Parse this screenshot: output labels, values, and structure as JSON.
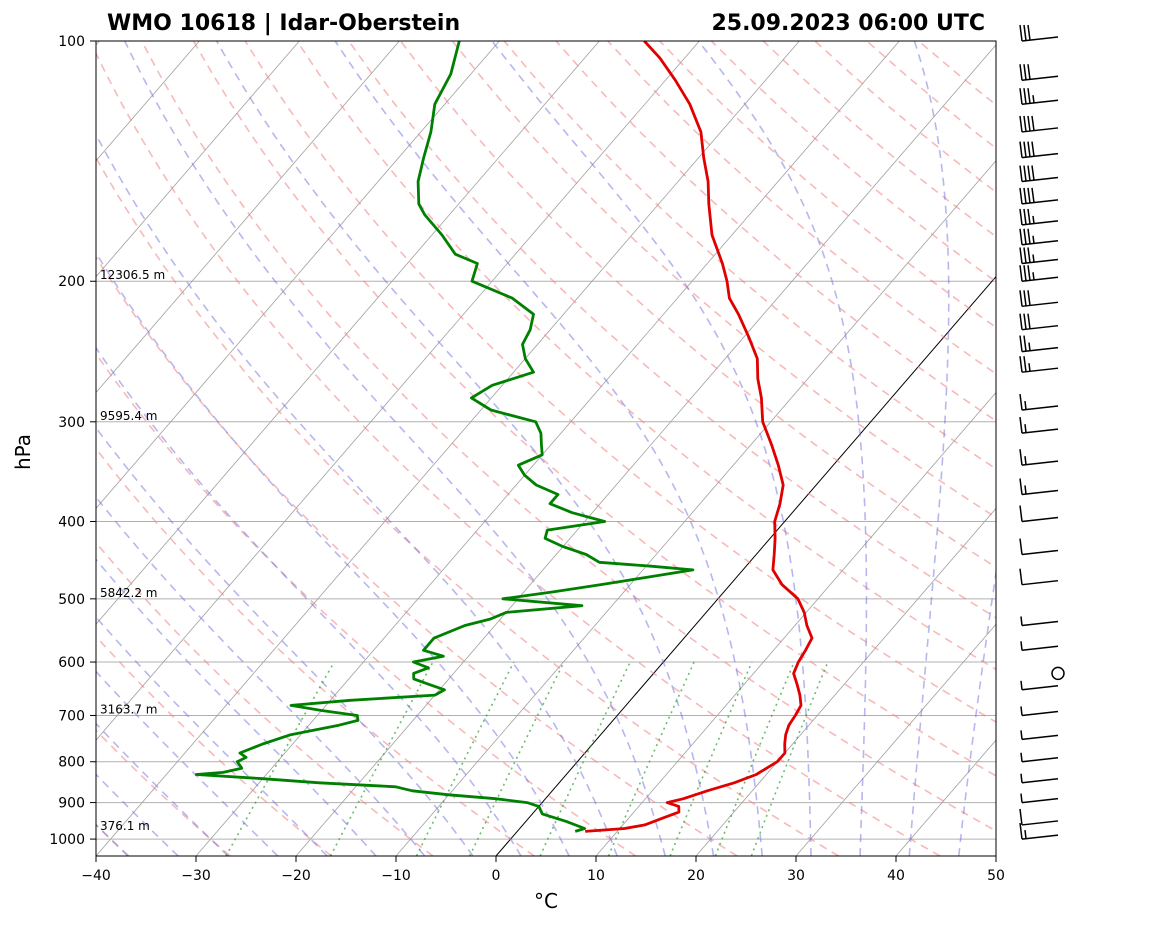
{
  "chart_data": {
    "type": "line",
    "title_left": "WMO 10618 | Idar-Oberstein",
    "title_right": "25.09.2023 06:00 UTC",
    "xlabel": "°C",
    "ylabel": "hPa",
    "xlim": [
      -40,
      50
    ],
    "ylim": [
      1050,
      100
    ],
    "y_scale": "log",
    "x_ticks": [
      -40,
      -30,
      -20,
      -10,
      0,
      10,
      20,
      30,
      40,
      50
    ],
    "x_tick_labels": [
      "−40",
      "−30",
      "−20",
      "−10",
      "0",
      "10",
      "20",
      "30",
      "40",
      "50"
    ],
    "y_ticks": [
      100,
      200,
      300,
      400,
      500,
      600,
      700,
      800,
      900,
      1000
    ],
    "y_tick_labels": [
      "100",
      "200",
      "300",
      "400",
      "500",
      "600",
      "700",
      "800",
      "900",
      "1000"
    ],
    "grid": true,
    "skew": "skew-T",
    "height_labels": [
      {
        "p": 200,
        "text": "12306.5 m"
      },
      {
        "p": 300,
        "text": "9595.4 m"
      },
      {
        "p": 500,
        "text": "5842.2 m"
      },
      {
        "p": 700,
        "text": "3163.7 m"
      },
      {
        "p": 980,
        "text": "376.1 m"
      }
    ],
    "series": [
      {
        "role": "temperature",
        "color": "#e00000",
        "points": [
          [
            978,
            6.8
          ],
          [
            970,
            10.5
          ],
          [
            960,
            12.2
          ],
          [
            940,
            13.5
          ],
          [
            925,
            14.5
          ],
          [
            910,
            14.0
          ],
          [
            900,
            12.5
          ],
          [
            890,
            13.8
          ],
          [
            870,
            15.5
          ],
          [
            850,
            17.5
          ],
          [
            830,
            19.0
          ],
          [
            800,
            20.0
          ],
          [
            780,
            20.0
          ],
          [
            760,
            19.2
          ],
          [
            740,
            18.5
          ],
          [
            720,
            18.0
          ],
          [
            700,
            17.8
          ],
          [
            680,
            17.5
          ],
          [
            660,
            16.5
          ],
          [
            640,
            15.3
          ],
          [
            620,
            14.0
          ],
          [
            600,
            13.5
          ],
          [
            580,
            13.2
          ],
          [
            560,
            12.8
          ],
          [
            540,
            11.2
          ],
          [
            520,
            9.8
          ],
          [
            500,
            8.0
          ],
          [
            480,
            5.2
          ],
          [
            460,
            3.0
          ],
          [
            440,
            1.8
          ],
          [
            420,
            0.5
          ],
          [
            400,
            -1.0
          ],
          [
            380,
            -2.0
          ],
          [
            360,
            -3.3
          ],
          [
            340,
            -5.5
          ],
          [
            320,
            -8.0
          ],
          [
            300,
            -10.8
          ],
          [
            280,
            -13.0
          ],
          [
            265,
            -15.0
          ],
          [
            250,
            -16.8
          ],
          [
            235,
            -19.5
          ],
          [
            220,
            -22.5
          ],
          [
            210,
            -24.8
          ],
          [
            200,
            -26.5
          ],
          [
            190,
            -28.5
          ],
          [
            175,
            -32.0
          ],
          [
            160,
            -35.0
          ],
          [
            150,
            -37.0
          ],
          [
            140,
            -39.5
          ],
          [
            130,
            -42.0
          ],
          [
            120,
            -45.5
          ],
          [
            112,
            -49.0
          ],
          [
            105,
            -52.5
          ],
          [
            100,
            -55.5
          ]
        ]
      },
      {
        "role": "dewpoint",
        "color": "#008000",
        "points": [
          [
            978,
            5.8
          ],
          [
            970,
            6.5
          ],
          [
            950,
            4.0
          ],
          [
            930,
            1.0
          ],
          [
            910,
            0.0
          ],
          [
            900,
            -1.5
          ],
          [
            890,
            -5.0
          ],
          [
            880,
            -10.0
          ],
          [
            870,
            -14.0
          ],
          [
            860,
            -16.0
          ],
          [
            850,
            -24.0
          ],
          [
            840,
            -30.0
          ],
          [
            830,
            -37.0
          ],
          [
            825,
            -34.5
          ],
          [
            815,
            -33.0
          ],
          [
            800,
            -34.0
          ],
          [
            790,
            -33.5
          ],
          [
            780,
            -34.5
          ],
          [
            760,
            -33.0
          ],
          [
            740,
            -31.0
          ],
          [
            730,
            -29.0
          ],
          [
            720,
            -27.0
          ],
          [
            710,
            -25.5
          ],
          [
            700,
            -26.0
          ],
          [
            690,
            -30.0
          ],
          [
            680,
            -33.5
          ],
          [
            670,
            -28.0
          ],
          [
            660,
            -20.0
          ],
          [
            650,
            -19.5
          ],
          [
            640,
            -21.5
          ],
          [
            630,
            -23.5
          ],
          [
            620,
            -24.0
          ],
          [
            610,
            -23.0
          ],
          [
            600,
            -25.0
          ],
          [
            590,
            -22.5
          ],
          [
            580,
            -25.0
          ],
          [
            560,
            -25.0
          ],
          [
            540,
            -23.0
          ],
          [
            530,
            -21.0
          ],
          [
            520,
            -20.0
          ],
          [
            510,
            -13.0
          ],
          [
            500,
            -21.5
          ],
          [
            490,
            -17.0
          ],
          [
            480,
            -13.0
          ],
          [
            470,
            -9.0
          ],
          [
            460,
            -5.0
          ],
          [
            455,
            -9.5
          ],
          [
            450,
            -15.0
          ],
          [
            440,
            -17.0
          ],
          [
            430,
            -20.0
          ],
          [
            420,
            -22.5
          ],
          [
            410,
            -23.0
          ],
          [
            400,
            -18.0
          ],
          [
            390,
            -22.0
          ],
          [
            380,
            -25.0
          ],
          [
            370,
            -25.0
          ],
          [
            360,
            -28.0
          ],
          [
            350,
            -30.0
          ],
          [
            340,
            -31.5
          ],
          [
            330,
            -30.0
          ],
          [
            320,
            -31.0
          ],
          [
            310,
            -32.0
          ],
          [
            300,
            -33.5
          ],
          [
            290,
            -39.0
          ],
          [
            280,
            -42.0
          ],
          [
            270,
            -41.0
          ],
          [
            260,
            -38.0
          ],
          [
            250,
            -40.0
          ],
          [
            240,
            -41.5
          ],
          [
            230,
            -42.0
          ],
          [
            220,
            -43.0
          ],
          [
            210,
            -46.5
          ],
          [
            200,
            -52.0
          ],
          [
            190,
            -53.0
          ],
          [
            185,
            -56.0
          ],
          [
            175,
            -59.0
          ],
          [
            165,
            -62.5
          ],
          [
            160,
            -64.0
          ],
          [
            150,
            -66.0
          ],
          [
            140,
            -67.5
          ],
          [
            130,
            -69.0
          ],
          [
            120,
            -71.0
          ],
          [
            110,
            -72.0
          ],
          [
            100,
            -74.0
          ]
        ]
      }
    ],
    "wind_barbs": [
      {
        "p": 1000,
        "knots": 15
      },
      {
        "p": 960,
        "knots": 10
      },
      {
        "p": 900,
        "knots": 5
      },
      {
        "p": 850,
        "knots": 5
      },
      {
        "p": 800,
        "knots": 5
      },
      {
        "p": 750,
        "knots": 5
      },
      {
        "p": 700,
        "knots": 5
      },
      {
        "p": 650,
        "knots": 5
      },
      {
        "p": 620,
        "knots": 0
      },
      {
        "p": 580,
        "knots": 5
      },
      {
        "p": 540,
        "knots": 5
      },
      {
        "p": 480,
        "knots": 10
      },
      {
        "p": 440,
        "knots": 10
      },
      {
        "p": 400,
        "knots": 10
      },
      {
        "p": 370,
        "knots": 15
      },
      {
        "p": 340,
        "knots": 15
      },
      {
        "p": 310,
        "knots": 15
      },
      {
        "p": 290,
        "knots": 15
      },
      {
        "p": 260,
        "knots": 25
      },
      {
        "p": 245,
        "knots": 25
      },
      {
        "p": 230,
        "knots": 30
      },
      {
        "p": 215,
        "knots": 30
      },
      {
        "p": 200,
        "knots": 35
      },
      {
        "p": 190,
        "knots": 35
      },
      {
        "p": 180,
        "knots": 35
      },
      {
        "p": 170,
        "knots": 35
      },
      {
        "p": 160,
        "knots": 40
      },
      {
        "p": 150,
        "knots": 40
      },
      {
        "p": 140,
        "knots": 40
      },
      {
        "p": 130,
        "knots": 40
      },
      {
        "p": 120,
        "knots": 35
      },
      {
        "p": 112,
        "knots": 30
      },
      {
        "p": 100,
        "knots": 30
      }
    ]
  }
}
